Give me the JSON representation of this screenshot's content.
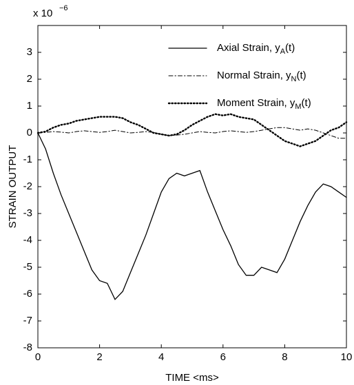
{
  "chart_data": {
    "type": "line",
    "x_label": "TIME <ms>",
    "y_label": "STRAIN OUTPUT",
    "y_multiplier": "x 10",
    "y_multiplier_exp": "−6",
    "x": [
      0,
      0.25,
      0.5,
      0.75,
      1,
      1.25,
      1.5,
      1.75,
      2,
      2.25,
      2.5,
      2.75,
      3,
      3.25,
      3.5,
      3.75,
      4,
      4.25,
      4.5,
      4.75,
      5,
      5.25,
      5.5,
      5.75,
      6,
      6.25,
      6.5,
      6.75,
      7,
      7.25,
      7.5,
      7.75,
      8,
      8.25,
      8.5,
      8.75,
      9,
      9.25,
      9.5,
      9.75,
      10
    ],
    "series": [
      {
        "name": "Axial Strain, yA(t)",
        "color": "#000000",
        "style": "solid",
        "values": [
          0,
          -0.6,
          -1.5,
          -2.3,
          -3.0,
          -3.7,
          -4.4,
          -5.1,
          -5.5,
          -5.6,
          -6.2,
          -5.9,
          -5.2,
          -4.5,
          -3.8,
          -3.0,
          -2.2,
          -1.7,
          -1.5,
          -1.6,
          -1.5,
          -1.4,
          -2.2,
          -2.9,
          -3.6,
          -4.2,
          -4.9,
          -5.3,
          -5.3,
          -5.0,
          -5.1,
          -5.2,
          -4.7,
          -4.0,
          -3.3,
          -2.7,
          -2.2,
          -1.9,
          -2.0,
          -2.2,
          -2.4
        ]
      },
      {
        "name": "Normal Strain, yN(t)",
        "color": "#000000",
        "style": "dashdot",
        "values": [
          0,
          0.02,
          0.05,
          0.03,
          0,
          0.05,
          0.08,
          0.05,
          0.02,
          0.05,
          0.1,
          0.05,
          0,
          0.02,
          0.05,
          0.02,
          -0.05,
          -0.1,
          -0.08,
          -0.05,
          0,
          0.05,
          0.02,
          0,
          0.05,
          0.08,
          0.05,
          0.02,
          0.05,
          0.1,
          0.15,
          0.2,
          0.2,
          0.15,
          0.1,
          0.15,
          0.1,
          0,
          -0.1,
          -0.2,
          -0.2
        ]
      },
      {
        "name": "Moment Strain, yM(t)",
        "color": "#000000",
        "style": "dotted",
        "values": [
          0,
          0.05,
          0.2,
          0.3,
          0.35,
          0.45,
          0.5,
          0.55,
          0.6,
          0.6,
          0.6,
          0.55,
          0.4,
          0.3,
          0.15,
          0,
          -0.05,
          -0.1,
          -0.05,
          0.1,
          0.3,
          0.45,
          0.6,
          0.7,
          0.65,
          0.7,
          0.6,
          0.55,
          0.5,
          0.3,
          0.1,
          -0.1,
          -0.3,
          -0.4,
          -0.5,
          -0.4,
          -0.3,
          -0.1,
          0.1,
          0.2,
          0.4
        ]
      }
    ],
    "xlim": [
      0,
      10
    ],
    "ylim": [
      -8,
      4
    ],
    "xticks": [
      0,
      2,
      4,
      6,
      8,
      10
    ],
    "yticks": [
      -8,
      -7,
      -6,
      -5,
      -4,
      -3,
      -2,
      -1,
      0,
      1,
      2,
      3
    ],
    "grid": false,
    "legend": "upper right"
  }
}
